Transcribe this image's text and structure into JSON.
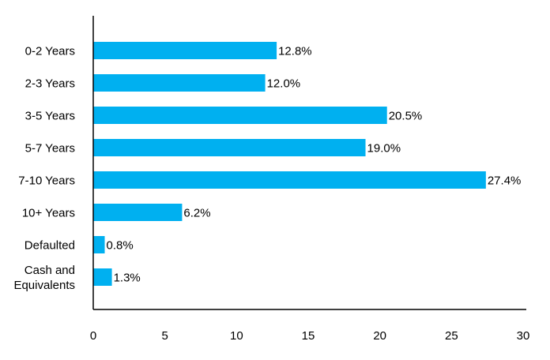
{
  "chart_data": {
    "type": "bar",
    "orientation": "horizontal",
    "title": "",
    "xlabel": "",
    "ylabel": "",
    "categories": [
      "0-2 Years",
      "2-3 Years",
      "3-5 Years",
      "5-7 Years",
      "7-10 Years",
      "10+ Years",
      "Defaulted",
      "Cash and Equivalents"
    ],
    "category_lines": [
      [
        "0-2 Years"
      ],
      [
        "2-3 Years"
      ],
      [
        "3-5 Years"
      ],
      [
        "5-7 Years"
      ],
      [
        "7-10 Years"
      ],
      [
        "10+ Years"
      ],
      [
        "Defaulted"
      ],
      [
        "Cash and",
        "Equivalents"
      ]
    ],
    "values": [
      12.8,
      12.0,
      20.5,
      19.0,
      27.4,
      6.2,
      0.8,
      1.3
    ],
    "value_labels": [
      "12.8%",
      "12.0%",
      "20.5%",
      "19.0%",
      "27.4%",
      "6.2%",
      "0.8%",
      "1.3%"
    ],
    "xlim": [
      0,
      30
    ],
    "xticks": [
      0,
      5,
      10,
      15,
      20,
      25,
      30
    ],
    "xtick_labels": [
      "0",
      "5",
      "10",
      "15",
      "20",
      "25",
      "30"
    ],
    "grid": false,
    "legend": "none",
    "bar_color": "#00B0F0",
    "axis_color": "#000000"
  }
}
